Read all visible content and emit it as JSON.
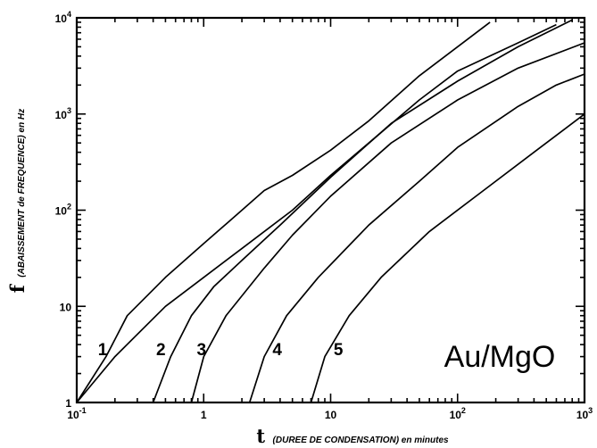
{
  "chart_data": {
    "type": "line",
    "x_scale": "log",
    "y_scale": "log",
    "xlim": [
      0.1,
      1000
    ],
    "ylim": [
      1,
      10000
    ],
    "grid": false,
    "x_ticks": [
      {
        "value": 0.1,
        "base": "10",
        "exp": "-1"
      },
      {
        "value": 1,
        "base": "1",
        "exp": ""
      },
      {
        "value": 10,
        "base": "10",
        "exp": ""
      },
      {
        "value": 100,
        "base": "10",
        "exp": "2"
      },
      {
        "value": 1000,
        "base": "10",
        "exp": "3"
      }
    ],
    "y_ticks": [
      {
        "value": 1,
        "base": "1",
        "exp": ""
      },
      {
        "value": 10,
        "base": "10",
        "exp": ""
      },
      {
        "value": 100,
        "base": "10",
        "exp": "2"
      },
      {
        "value": 1000,
        "base": "10",
        "exp": "3"
      },
      {
        "value": 10000,
        "base": "10",
        "exp": "4"
      }
    ],
    "xlabel": {
      "symbol": "t",
      "text": "(DUREE DE CONDENSATION) en minutes"
    },
    "ylabel": {
      "symbol": "f",
      "text": "(ABAISSEMENT  de FREQUENCE) en Hz"
    },
    "annotation": "Au/MgO",
    "series": [
      {
        "name": "1",
        "points": [
          [
            0.1,
            1
          ],
          [
            0.17,
            3
          ],
          [
            0.25,
            8
          ],
          [
            0.5,
            20
          ],
          [
            1,
            45
          ],
          [
            2,
            100
          ],
          [
            3,
            160
          ],
          [
            5,
            230
          ],
          [
            10,
            420
          ],
          [
            20,
            850
          ],
          [
            50,
            2500
          ],
          [
            100,
            5000
          ],
          [
            180,
            9000
          ]
        ]
      },
      {
        "name": "",
        "points": [
          [
            0.1,
            1
          ],
          [
            0.2,
            3
          ],
          [
            0.5,
            10
          ],
          [
            1,
            20
          ],
          [
            2,
            40
          ],
          [
            5,
            100
          ],
          [
            10,
            230
          ],
          [
            20,
            500
          ],
          [
            50,
            1400
          ],
          [
            100,
            2800
          ],
          [
            300,
            5500
          ],
          [
            600,
            8500
          ]
        ]
      },
      {
        "name": "2",
        "points": [
          [
            0.4,
            1
          ],
          [
            0.55,
            3
          ],
          [
            0.8,
            8
          ],
          [
            1.2,
            16
          ],
          [
            2,
            30
          ],
          [
            4,
            70
          ],
          [
            10,
            220
          ],
          [
            30,
            800
          ],
          [
            100,
            2200
          ],
          [
            300,
            5000
          ],
          [
            800,
            9500
          ]
        ]
      },
      {
        "name": "3",
        "points": [
          [
            0.8,
            1
          ],
          [
            1.0,
            3
          ],
          [
            1.5,
            8
          ],
          [
            3,
            25
          ],
          [
            5,
            55
          ],
          [
            10,
            140
          ],
          [
            30,
            500
          ],
          [
            100,
            1400
          ],
          [
            300,
            3000
          ],
          [
            1000,
            5500
          ]
        ]
      },
      {
        "name": "4",
        "points": [
          [
            2.3,
            1
          ],
          [
            3,
            3
          ],
          [
            4.5,
            8
          ],
          [
            8,
            20
          ],
          [
            20,
            70
          ],
          [
            50,
            200
          ],
          [
            100,
            450
          ],
          [
            300,
            1200
          ],
          [
            600,
            2000
          ],
          [
            1000,
            2600
          ]
        ]
      },
      {
        "name": "5",
        "points": [
          [
            7,
            1
          ],
          [
            9,
            3
          ],
          [
            14,
            8
          ],
          [
            25,
            20
          ],
          [
            60,
            60
          ],
          [
            150,
            150
          ],
          [
            400,
            400
          ],
          [
            1000,
            1000
          ]
        ]
      }
    ],
    "curve_labels": [
      {
        "text": "1",
        "x": 0.16,
        "y": 3.1
      },
      {
        "text": "2",
        "x": 0.46,
        "y": 3.1
      },
      {
        "text": "3",
        "x": 0.96,
        "y": 3.1
      },
      {
        "text": "4",
        "x": 3.8,
        "y": 3.1
      },
      {
        "text": "5",
        "x": 11.5,
        "y": 3.1
      }
    ]
  }
}
